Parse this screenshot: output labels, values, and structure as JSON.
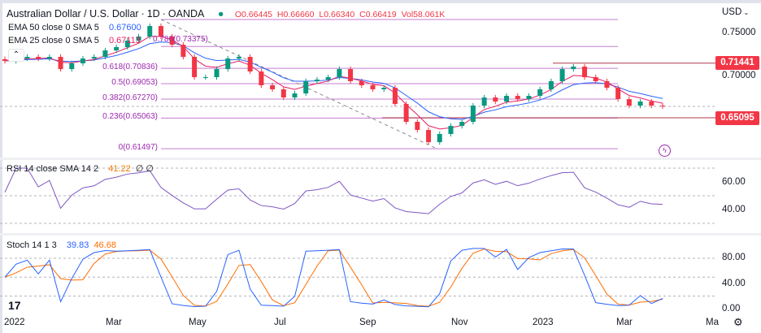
{
  "header": {
    "symbol": "Australian Dollar / U.S. Dollar",
    "interval": "1D",
    "source": "OANDA",
    "open": "O0.66445",
    "high": "H0.66660",
    "low": "L0.66340",
    "close": "C0.66419",
    "volume": "Vol58.061K"
  },
  "indicators": {
    "ema50": {
      "label": "EMA 50 close 0 SMA 5",
      "value": "0.67600"
    },
    "ema25": {
      "label": "EMA 25 close 0 SMA 5",
      "value": "0.67113"
    },
    "rsi": {
      "label": "RSI 14 close SMA 14 2",
      "value": "41.22",
      "extra": "∅ ∅"
    },
    "stoch": {
      "label": "Stoch 14 1 3",
      "k": "39.83",
      "d": "46.68"
    }
  },
  "price_axis": {
    "currency": "USD",
    "ticks": [
      "0.75000",
      "0.70000"
    ],
    "tags": [
      "0.71441",
      "0.65095"
    ]
  },
  "rsi_axis": [
    "60.00",
    "40.00"
  ],
  "stoch_axis": [
    "80.00",
    "40.00",
    "0.00"
  ],
  "time_axis": [
    "2022",
    "Mar",
    "May",
    "Jul",
    "Sep",
    "Nov",
    "2023",
    "Mar",
    "Ma"
  ],
  "fib_levels": [
    {
      "label": "0.786(0.73375)",
      "price": 0.73375
    },
    {
      "label": "0.618(0.70836)",
      "price": 0.70836
    },
    {
      "label": "0.5(0.69053)",
      "price": 0.69053
    },
    {
      "label": "0.382(0.67270)",
      "price": 0.6727
    },
    {
      "label": "0.236(0.65063)",
      "price": 0.65063
    },
    {
      "label": "0(0.61497)",
      "price": 0.61497
    }
  ],
  "colors": {
    "up": "#089981",
    "down": "#f23645",
    "ema50": "#2962ff",
    "ema25": "#e91e63",
    "fib": "#9c27b0",
    "rsi": "#7e57c2",
    "stochK": "#2962ff",
    "stochD": "#ff6d00"
  },
  "chart_data": {
    "type": "candlestick",
    "ylim": [
      0.605,
      0.765
    ],
    "closes": [
      0.717,
      0.7198,
      0.7217,
      0.7198,
      0.7217,
      0.7075,
      0.7142,
      0.7198,
      0.7217,
      0.7292,
      0.733,
      0.7406,
      0.7453,
      0.7575,
      0.7453,
      0.7358,
      0.7217,
      0.6981,
      0.6981,
      0.7075,
      0.7198,
      0.7217,
      0.7047,
      0.6887,
      0.684,
      0.6745,
      0.6792,
      0.6934,
      0.6953,
      0.6981,
      0.7075,
      0.6934,
      0.6887,
      0.684,
      0.6858,
      0.667,
      0.6462,
      0.6368,
      0.6226,
      0.6321,
      0.6415,
      0.6462,
      0.6651,
      0.6745,
      0.6698,
      0.6764,
      0.6726,
      0.6764,
      0.684,
      0.6934,
      0.7075,
      0.7104,
      0.6981,
      0.6934,
      0.6858,
      0.6726,
      0.6651,
      0.6698,
      0.6651,
      0.6642
    ]
  }
}
